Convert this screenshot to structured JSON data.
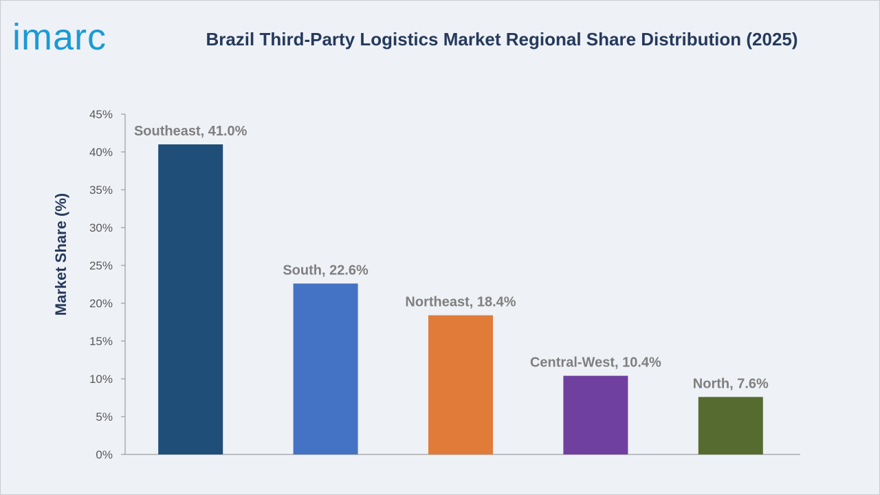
{
  "logo": {
    "text": "imarc",
    "color": "#1a9ad6"
  },
  "chart_data": {
    "type": "bar",
    "title": "Brazil Third-Party Logistics Market Regional Share Distribution (2025)",
    "xlabel": "",
    "ylabel": "Market Share (%)",
    "ylim": [
      0,
      45
    ],
    "yticks": [
      "0%",
      "5%",
      "10%",
      "15%",
      "20%",
      "25%",
      "30%",
      "35%",
      "40%",
      "45%"
    ],
    "ytick_values": [
      0,
      5,
      10,
      15,
      20,
      25,
      30,
      35,
      40,
      45
    ],
    "categories": [
      "Southeast",
      "South",
      "Northeast",
      "Central-West",
      "North"
    ],
    "values": [
      41.0,
      22.6,
      18.4,
      10.4,
      7.6
    ],
    "data_labels": [
      "Southeast, 41.0%",
      "South, 22.6%",
      "Northeast, 18.4%",
      "Central-West, 10.4%",
      "North, 7.6%"
    ],
    "colors": [
      "#1f4e79",
      "#4472c4",
      "#e07b39",
      "#7040a0",
      "#556b2f"
    ],
    "grid": false,
    "legend": "none"
  }
}
